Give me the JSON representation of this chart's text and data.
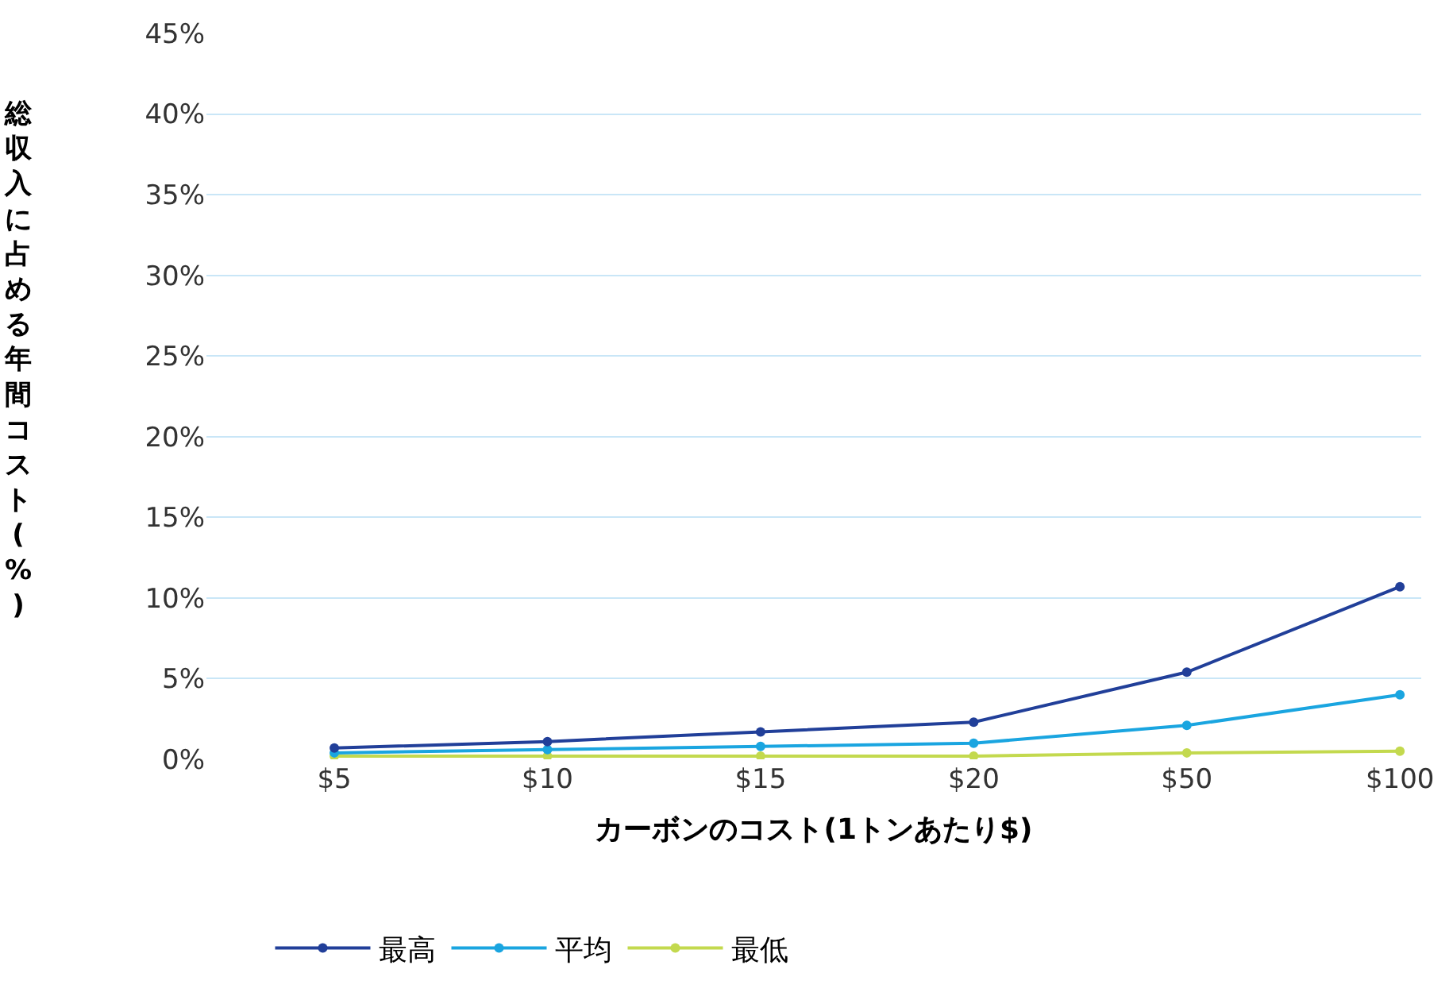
{
  "chart_data": {
    "type": "line",
    "xlabel": "カーボンのコスト(1トンあたり$)",
    "ylabel": "総収入に占める年間コスト(%)",
    "categories": [
      "$5",
      "$10",
      "$15",
      "$20",
      "$50",
      "$100"
    ],
    "series": [
      {
        "name": "最高",
        "color": "#213f99",
        "values": [
          0.7,
          1.1,
          1.7,
          2.3,
          5.4,
          10.7
        ]
      },
      {
        "name": "平均",
        "color": "#1aa5e0",
        "values": [
          0.4,
          0.6,
          0.8,
          1.0,
          2.1,
          4.0
        ]
      },
      {
        "name": "最低",
        "color": "#c3d94e",
        "values": [
          0.2,
          0.2,
          0.2,
          0.2,
          0.4,
          0.5
        ]
      }
    ],
    "ylim": [
      0,
      45
    ],
    "yticks": [
      {
        "value": 0,
        "label": "0%"
      },
      {
        "value": 5,
        "label": "5%"
      },
      {
        "value": 10,
        "label": "10%"
      },
      {
        "value": 15,
        "label": "15%"
      },
      {
        "value": 20,
        "label": "20%"
      },
      {
        "value": 25,
        "label": "25%"
      },
      {
        "value": 30,
        "label": "30%"
      },
      {
        "value": 35,
        "label": "35%"
      },
      {
        "value": 40,
        "label": "40%"
      },
      {
        "value": 45,
        "label": "45%"
      }
    ],
    "grid": "y",
    "legend": "bottom",
    "marker": "circle",
    "line_style": "solid"
  }
}
